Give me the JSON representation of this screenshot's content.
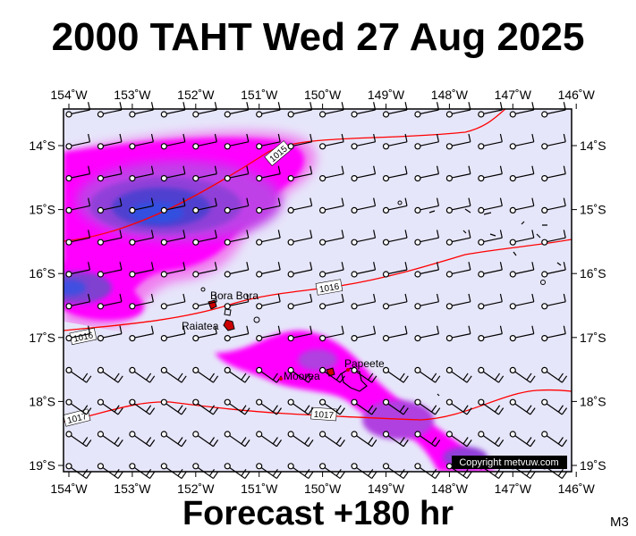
{
  "title": "2000 TAHT Wed 27 Aug 2025",
  "footer": "Forecast +180 hr",
  "model_code": "M3",
  "copyright": "Copyright metvuw.com",
  "lon_labels": [
    "154˚W",
    "153˚W",
    "152˚W",
    "151˚W",
    "150˚W",
    "149˚W",
    "148˚W",
    "147˚W",
    "146˚W"
  ],
  "lat_labels": [
    "14˚S",
    "15˚S",
    "16˚S",
    "17˚S",
    "18˚S",
    "19˚S"
  ],
  "places": [
    "Bora Bora",
    "Raiatea",
    "Moorea",
    "Papeete"
  ],
  "isobars": [
    "1015",
    "1016",
    "1016",
    "1017",
    "1017"
  ],
  "colors": {
    "ocean": "#e6e6fa",
    "light_magenta": "#ee88ee",
    "magenta": "#ff00ff",
    "violet": "#b040e0",
    "purple": "#8040d0",
    "blue": "#4040d0",
    "deep_blue": "#3050e0",
    "isobar": "#ff0000",
    "land": "#cc0000"
  }
}
